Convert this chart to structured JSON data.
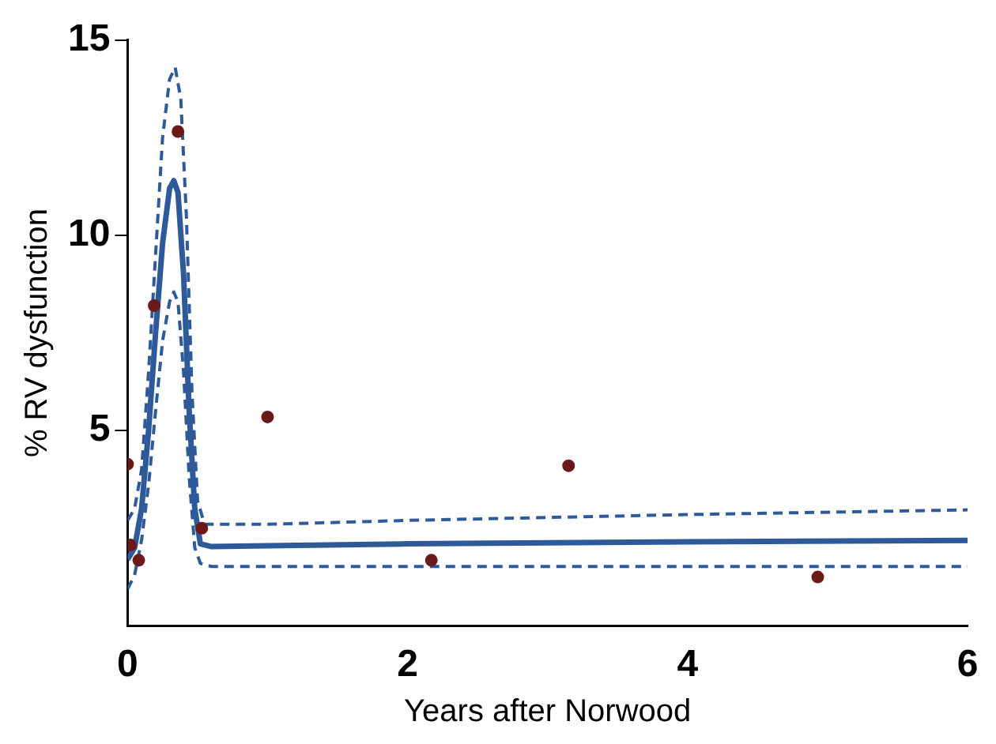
{
  "chart_data": {
    "type": "scatter",
    "xlabel": "Years after Norwood",
    "ylabel": "% RV dysfunction",
    "xlim": [
      0,
      6
    ],
    "xticks": [
      0,
      2,
      4,
      6
    ],
    "ylim": [
      0,
      15
    ],
    "yticks": [
      5,
      10,
      15
    ],
    "grid": false,
    "legend": false,
    "series": [
      {
        "type": "line",
        "color": "#2e5a9a",
        "line_style": "solid",
        "marker": "none",
        "x": [
          0,
          0.05,
          0.1,
          0.15,
          0.2,
          0.25,
          0.3,
          0.33,
          0.36,
          0.4,
          0.44,
          0.48,
          0.52,
          0.6,
          1,
          2,
          4,
          6
        ],
        "values": [
          1.7,
          2.0,
          3.0,
          5.0,
          7.5,
          9.8,
          11.2,
          11.4,
          11.1,
          9.0,
          5.5,
          3.0,
          2.1,
          2.03,
          2.05,
          2.1,
          2.15,
          2.19
        ]
      },
      {
        "type": "line",
        "color": "#2e5a9a",
        "line_style": "dashed",
        "marker": "none",
        "x": [
          0,
          0.05,
          0.1,
          0.15,
          0.2,
          0.25,
          0.3,
          0.34,
          0.38,
          0.42,
          0.46,
          0.5,
          0.55,
          1,
          2,
          4,
          6
        ],
        "values": [
          2.7,
          3.0,
          4.0,
          6.5,
          9.5,
          12.5,
          14.0,
          14.3,
          13.5,
          10.5,
          6.0,
          3.2,
          2.6,
          2.6,
          2.7,
          2.85,
          2.97
        ]
      },
      {
        "type": "line",
        "color": "#2e5a9a",
        "line_style": "dashed",
        "marker": "none",
        "x": [
          0,
          0.05,
          0.1,
          0.15,
          0.2,
          0.25,
          0.3,
          0.33,
          0.36,
          0.4,
          0.44,
          0.48,
          0.52,
          0.6,
          1,
          2,
          4,
          6
        ],
        "values": [
          0.94,
          1.3,
          2.2,
          3.6,
          5.5,
          7.3,
          8.3,
          8.55,
          8.3,
          6.5,
          3.8,
          2.0,
          1.6,
          1.52,
          1.52,
          1.52,
          1.52,
          1.52
        ]
      },
      {
        "type": "scatter",
        "color": "#6b1a1a",
        "marker": "circle",
        "x": [
          0,
          0.02,
          0.08,
          0.19,
          0.36,
          0.53,
          1.0,
          2.17,
          3.15,
          4.93
        ],
        "values": [
          4.14,
          2.07,
          1.68,
          8.2,
          12.66,
          2.5,
          5.35,
          1.68,
          4.1,
          1.25
        ]
      }
    ]
  }
}
